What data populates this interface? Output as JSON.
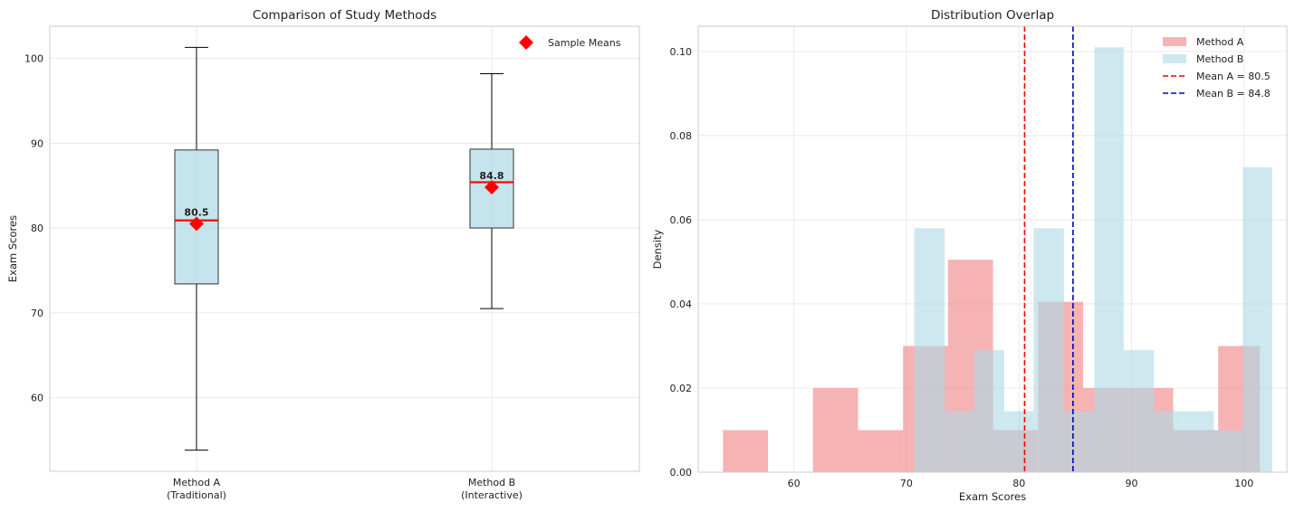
{
  "chart_data": [
    {
      "type": "box",
      "title": "Comparison of Study Methods",
      "xlabel": "",
      "ylabel": "Exam Scores",
      "categories": [
        "Method A\n(Traditional)",
        "Method B\n(Interactive)"
      ],
      "boxes": [
        {
          "whisker_low": 53.8,
          "q1": 73.4,
          "median": 80.9,
          "q3": 89.2,
          "whisker_high": 101.3,
          "mean": 80.5,
          "mean_label": "80.5"
        },
        {
          "whisker_low": 70.5,
          "q1": 80.0,
          "median": 85.4,
          "q3": 89.3,
          "whisker_high": 98.2,
          "mean": 84.8,
          "mean_label": "84.8"
        }
      ],
      "ylim": [
        51.3,
        103.8
      ],
      "yticks": [
        60,
        70,
        80,
        90,
        100
      ],
      "legend": {
        "placement": "top-right",
        "entries": [
          {
            "label": "Sample Means",
            "color": "#ff0000",
            "marker": "diamond"
          }
        ]
      },
      "grid": true,
      "colors": {
        "box_fill": "#add8e6",
        "median": "#ff0000",
        "mean_marker": "#ff0000"
      }
    },
    {
      "type": "histogram",
      "title": "Distribution Overlap",
      "xlabel": "Exam Scores",
      "ylabel": "Density",
      "xlim": [
        51.5,
        103.8
      ],
      "ylim": [
        0,
        0.106
      ],
      "xticks": [
        60,
        70,
        80,
        90,
        100
      ],
      "yticks": [
        0.0,
        0.02,
        0.04,
        0.06,
        0.08,
        0.1
      ],
      "series": [
        {
          "name": "Method A",
          "color": "#f08080",
          "bins": [
            {
              "x0": 53.7,
              "x1": 57.7,
              "y": 0.01
            },
            {
              "x0": 57.7,
              "x1": 61.7,
              "y": 0.0
            },
            {
              "x0": 61.7,
              "x1": 65.7,
              "y": 0.02
            },
            {
              "x0": 65.7,
              "x1": 69.7,
              "y": 0.01
            },
            {
              "x0": 69.7,
              "x1": 73.7,
              "y": 0.03
            },
            {
              "x0": 73.7,
              "x1": 77.7,
              "y": 0.0505
            },
            {
              "x0": 77.7,
              "x1": 81.7,
              "y": 0.01
            },
            {
              "x0": 81.7,
              "x1": 85.7,
              "y": 0.0405
            },
            {
              "x0": 85.7,
              "x1": 89.7,
              "y": 0.02
            },
            {
              "x0": 89.7,
              "x1": 93.7,
              "y": 0.02
            },
            {
              "x0": 93.7,
              "x1": 97.7,
              "y": 0.01
            },
            {
              "x0": 97.7,
              "x1": 101.4,
              "y": 0.03
            }
          ]
        },
        {
          "name": "Method B",
          "color": "#add8e6",
          "bins": [
            {
              "x0": 70.7,
              "x1": 73.4,
              "y": 0.058
            },
            {
              "x0": 73.4,
              "x1": 76.0,
              "y": 0.0145
            },
            {
              "x0": 76.0,
              "x1": 78.7,
              "y": 0.029
            },
            {
              "x0": 78.7,
              "x1": 81.3,
              "y": 0.0145
            },
            {
              "x0": 81.3,
              "x1": 84.0,
              "y": 0.058
            },
            {
              "x0": 84.0,
              "x1": 86.7,
              "y": 0.0145
            },
            {
              "x0": 86.7,
              "x1": 89.3,
              "y": 0.101
            },
            {
              "x0": 89.3,
              "x1": 92.0,
              "y": 0.029
            },
            {
              "x0": 92.0,
              "x1": 94.6,
              "y": 0.0145
            },
            {
              "x0": 94.6,
              "x1": 97.3,
              "y": 0.0145
            },
            {
              "x0": 97.3,
              "x1": 99.9,
              "y": 0.01
            },
            {
              "x0": 99.9,
              "x1": 102.5,
              "y": 0.0725
            }
          ]
        }
      ],
      "mean_lines": [
        {
          "label": "Mean A = 80.5",
          "x": 80.5,
          "color": "#ff0000"
        },
        {
          "label": "Mean B = 84.8",
          "x": 84.8,
          "color": "#0000cc"
        }
      ],
      "legend": {
        "placement": "top-right"
      },
      "grid": true
    }
  ]
}
